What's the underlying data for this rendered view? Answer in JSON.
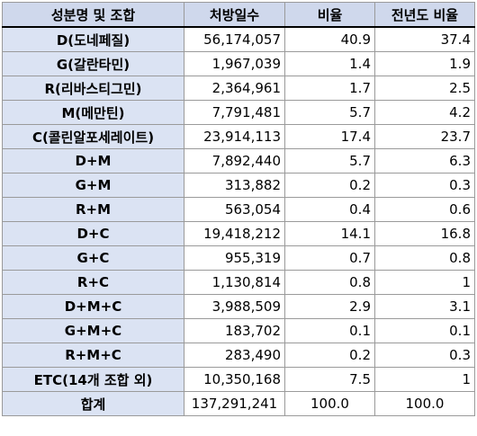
{
  "headers": [
    "성분명 및 조합",
    "처방일수",
    "비율",
    "전년도 비율"
  ],
  "rows": [
    {
      "name": "D(도네페질)",
      "days": "56,174,057",
      "ratio": "40.9",
      "prev": "37.4"
    },
    {
      "name": "G(갈란타민)",
      "days": "1,967,039",
      "ratio": "1.4",
      "prev": "1.9"
    },
    {
      "name": "R(리바스티그민)",
      "days": "2,364,961",
      "ratio": "1.7",
      "prev": "2.5"
    },
    {
      "name": "M(메만틴)",
      "days": "7,791,481",
      "ratio": "5.7",
      "prev": "4.2"
    },
    {
      "name": "C(콜린알포세레이트)",
      "days": "23,914,113",
      "ratio": "17.4",
      "prev": "23.7"
    },
    {
      "name": "D+M",
      "days": "7,892,440",
      "ratio": "5.7",
      "prev": "6.3"
    },
    {
      "name": "G+M",
      "days": "313,882",
      "ratio": "0.2",
      "prev": "0.3"
    },
    {
      "name": "R+M",
      "days": "563,054",
      "ratio": "0.4",
      "prev": "0.6"
    },
    {
      "name": "D+C",
      "days": "19,418,212",
      "ratio": "14.1",
      "prev": "16.8"
    },
    {
      "name": "G+C",
      "days": "955,319",
      "ratio": "0.7",
      "prev": "0.8"
    },
    {
      "name": "R+C",
      "days": "1,130,814",
      "ratio": "0.8",
      "prev": "1"
    },
    {
      "name": "D+M+C",
      "days": "3,988,509",
      "ratio": "2.9",
      "prev": "3.1"
    },
    {
      "name": "G+M+C",
      "days": "183,702",
      "ratio": "0.1",
      "prev": "0.1"
    },
    {
      "name": "R+M+C",
      "days": "283,490",
      "ratio": "0.2",
      "prev": "0.3"
    },
    {
      "name": "ETC(14개 조합 외)",
      "days": "10,350,168",
      "ratio": "7.5",
      "prev": "1"
    }
  ],
  "total": {
    "name": "합계",
    "days": "137,291,241",
    "ratio": "100.0",
    "prev": "100.0"
  }
}
